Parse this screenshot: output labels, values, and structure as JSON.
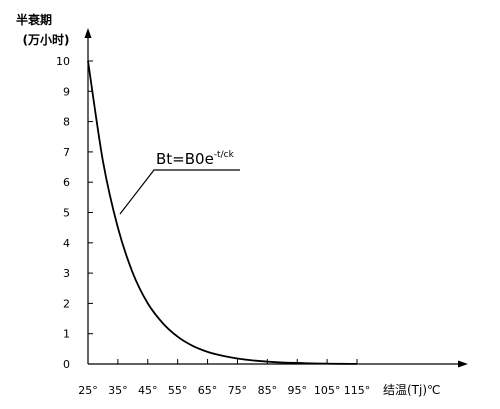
{
  "chart_data": {
    "type": "line",
    "ylabel_line1": "半衰期",
    "ylabel_line2": "(万小时)",
    "xlabel": "结温(Tj)℃",
    "annotation": {
      "base": "Bt=B0e",
      "superscript": "-t/ck"
    },
    "x_tick_labels": [
      "25°",
      "35°",
      "45°",
      "55°",
      "65°",
      "75°",
      "85°",
      "95°",
      "105°",
      "115°"
    ],
    "y_tick_labels": [
      "0",
      "1",
      "2",
      "3",
      "4",
      "5",
      "6",
      "7",
      "8",
      "9",
      "10"
    ],
    "xlim": [
      25,
      115
    ],
    "ylim": [
      0,
      10
    ],
    "grid": false,
    "series": [
      {
        "x": [
          25,
          30,
          35,
          40,
          45,
          50,
          55,
          60,
          65,
          70,
          75,
          80,
          85,
          90,
          95,
          100,
          105,
          110,
          115
        ],
        "values": [
          10.0,
          6.7,
          4.5,
          3.0,
          2.0,
          1.35,
          0.9,
          0.6,
          0.4,
          0.27,
          0.18,
          0.12,
          0.08,
          0.05,
          0.035,
          0.02,
          0.012,
          0.006,
          0.003
        ]
      }
    ]
  }
}
